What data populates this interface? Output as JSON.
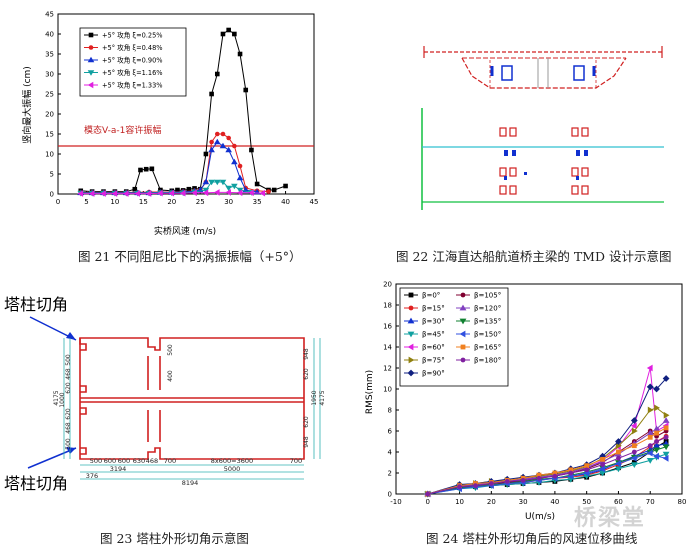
{
  "captions": {
    "fig21": "图 21 不同阻尼比下的涡振振幅（+5°）",
    "fig22": "图 22 江海直达船航道桥主梁的 TMD 设计示意图",
    "fig23": "图 23 塔柱外形切角示意图",
    "fig24": "图 24 塔柱外形切角后的风速位移曲线"
  },
  "fig21": {
    "xlabel": "实桥风速 (m/s)",
    "ylabel": "竖向最大振幅 (cm)",
    "threshold_label": "模态V-a-1容许振幅",
    "threshold_value": 12,
    "xticks": [
      "0",
      "5",
      "10",
      "15",
      "20",
      "25",
      "30",
      "35",
      "40",
      "45"
    ],
    "yticks": [
      "0",
      "5",
      "10",
      "15",
      "20",
      "25",
      "30",
      "35",
      "40",
      "45"
    ]
  },
  "fig22": {},
  "fig23": {
    "label_top": "塔柱切角",
    "label_bottom": "塔柱切角",
    "dims_bottom_row": [
      "500",
      "600",
      "600",
      "630",
      "468",
      "700",
      "8x600=3600",
      "700"
    ],
    "dim_3194": "3194",
    "dim_5000": "5000",
    "dim_376": "376",
    "dim_8194": "8194",
    "dims_left": [
      "500",
      "468",
      "620",
      "1000",
      "620",
      "468",
      "500",
      "4175"
    ],
    "dims_right": [
      "948",
      "620",
      "1950",
      "620",
      "948",
      "4175"
    ],
    "dims_mid": [
      "500",
      "400"
    ]
  },
  "fig24": {
    "xlabel": "U(m/s)",
    "ylabel": "RMS(mm)",
    "xticks": [
      "-10",
      "0",
      "10",
      "20",
      "30",
      "40",
      "50",
      "60",
      "70",
      "80"
    ],
    "yticks": [
      "0",
      "2",
      "4",
      "6",
      "8",
      "10",
      "12",
      "14",
      "16",
      "18",
      "20"
    ]
  },
  "watermark": "桥梁堂",
  "chart_data": [
    {
      "type": "line",
      "title": "",
      "xlabel": "实桥风速 (m/s)",
      "ylabel": "竖向最大振幅 (cm)",
      "xlim": [
        0,
        45
      ],
      "ylim": [
        0,
        45
      ],
      "annotations": [
        {
          "text": "模态V-a-1容许振幅",
          "y": 12
        }
      ],
      "legend_position": "top-left",
      "series": [
        {
          "name": "+5° 攻角 ξ=0.25%",
          "color": "#000000",
          "marker": "square",
          "x": [
            4,
            6,
            8,
            10,
            12,
            13.5,
            14.5,
            15.5,
            16.5,
            18,
            20,
            21,
            22,
            23,
            24,
            25,
            26,
            27,
            28,
            29,
            30,
            31,
            32,
            33,
            34,
            35,
            37,
            38,
            40
          ],
          "y": [
            0.8,
            0.6,
            0.6,
            0.6,
            0.6,
            1.2,
            6,
            6.2,
            6.3,
            1,
            0.8,
            1,
            0.9,
            1.2,
            1.4,
            1.2,
            10,
            25,
            30,
            40,
            41,
            40,
            35,
            26,
            11,
            2.5,
            1,
            1,
            2
          ]
        },
        {
          "name": "+5° 攻角 ξ=0.48%",
          "color": "#e02020",
          "marker": "circle",
          "x": [
            4,
            6,
            8,
            10,
            12,
            14,
            16,
            18,
            20,
            22,
            24,
            25,
            26,
            27,
            28,
            29,
            30,
            31,
            32,
            33,
            35,
            37
          ],
          "y": [
            0.4,
            0.4,
            0.4,
            0.4,
            0.4,
            0.4,
            0.5,
            0.5,
            0.5,
            0.6,
            0.8,
            1,
            3,
            13,
            15,
            15,
            14,
            12,
            7,
            1.5,
            0.8,
            0.6
          ]
        },
        {
          "name": "+5° 攻角 ξ=0.90%",
          "color": "#1030d0",
          "marker": "triangle-up",
          "x": [
            4,
            6,
            8,
            10,
            12,
            14,
            16,
            18,
            20,
            22,
            24,
            25,
            26,
            27,
            28,
            29,
            30,
            31,
            32,
            33,
            35
          ],
          "y": [
            0.3,
            0.3,
            0.3,
            0.3,
            0.3,
            0.3,
            0.3,
            0.4,
            0.4,
            0.5,
            0.7,
            1,
            3,
            11,
            13,
            12,
            11,
            8,
            4,
            1,
            0.5
          ]
        },
        {
          "name": "+5° 攻角 ξ=1.16%",
          "color": "#10a0a0",
          "marker": "triangle-down",
          "x": [
            4,
            6,
            8,
            10,
            12,
            14,
            16,
            18,
            20,
            22,
            24,
            26,
            27,
            28,
            29,
            30,
            31,
            32,
            34
          ],
          "y": [
            0.2,
            0.2,
            0.2,
            0.2,
            0.2,
            0.2,
            0.2,
            0.3,
            0.3,
            0.3,
            0.5,
            1,
            3,
            3,
            3,
            1.5,
            2,
            1,
            0.4
          ]
        },
        {
          "name": "+5° 攻角 ξ=1.33%",
          "color": "#e020e0",
          "marker": "triangle-left",
          "x": [
            4,
            6,
            8,
            10,
            12,
            14,
            16,
            18,
            20,
            22,
            24,
            26,
            28,
            30,
            32,
            34,
            36
          ],
          "y": [
            0.1,
            0.1,
            0.1,
            0.1,
            0.1,
            0.1,
            0.1,
            0.2,
            0.2,
            0.2,
            0.3,
            0.3,
            0.4,
            0.4,
            0.3,
            0.3,
            0.2
          ]
        }
      ]
    },
    {
      "type": "line",
      "title": "",
      "xlabel": "U(m/s)",
      "ylabel": "RMS(mm)",
      "xlim": [
        -10,
        80
      ],
      "ylim": [
        0,
        20
      ],
      "legend_position": "top-left",
      "series": [
        {
          "name": "β=0°",
          "color": "#000000",
          "marker": "square",
          "x": [
            0,
            10,
            15,
            20,
            25,
            30,
            35,
            40,
            45,
            50,
            55,
            60,
            65,
            70,
            72,
            75
          ],
          "y": [
            0,
            0.6,
            0.7,
            0.8,
            0.9,
            1,
            1.1,
            1.2,
            1.4,
            1.6,
            2,
            2.5,
            3,
            4,
            4.5,
            5
          ]
        },
        {
          "name": "β=15°",
          "color": "#e02020",
          "marker": "circle",
          "x": [
            0,
            10,
            15,
            20,
            25,
            30,
            35,
            40,
            45,
            50,
            55,
            60,
            65,
            70,
            72,
            75
          ],
          "y": [
            0,
            0.7,
            0.8,
            0.9,
            1,
            1.1,
            1.3,
            1.5,
            1.6,
            1.8,
            2.2,
            2.8,
            3.5,
            4.5,
            5,
            5.5
          ]
        },
        {
          "name": "β=30°",
          "color": "#1030d0",
          "marker": "triangle-up",
          "x": [
            0,
            10,
            15,
            20,
            25,
            30,
            35,
            40,
            45,
            50,
            55,
            60,
            65,
            70,
            72,
            75
          ],
          "y": [
            0,
            0.8,
            0.9,
            1,
            1.1,
            1.2,
            1.4,
            1.5,
            1.7,
            1.9,
            2.3,
            3,
            3.6,
            4.2,
            4.6,
            4.8
          ]
        },
        {
          "name": "β=45°",
          "color": "#10a0a0",
          "marker": "triangle-down",
          "x": [
            0,
            10,
            15,
            20,
            25,
            30,
            35,
            40,
            45,
            50,
            55,
            60,
            65,
            70,
            72,
            75
          ],
          "y": [
            0,
            0.5,
            0.6,
            0.8,
            0.9,
            1,
            1.1,
            1.3,
            1.4,
            1.7,
            2,
            2.4,
            2.8,
            3.2,
            3.5,
            3.8
          ]
        },
        {
          "name": "β=60°",
          "color": "#e020e0",
          "marker": "triangle-left",
          "x": [
            0,
            10,
            15,
            20,
            25,
            30,
            35,
            40,
            45,
            50,
            55,
            60,
            65,
            70,
            72,
            75
          ],
          "y": [
            0,
            0.7,
            0.9,
            1,
            1.2,
            1.4,
            1.6,
            1.8,
            2.1,
            2.5,
            3.2,
            4.5,
            6.5,
            12,
            6,
            6.5
          ]
        },
        {
          "name": "β=75°",
          "color": "#908010",
          "marker": "triangle-right",
          "x": [
            0,
            10,
            15,
            20,
            25,
            30,
            35,
            40,
            45,
            50,
            55,
            60,
            65,
            70,
            72,
            75
          ],
          "y": [
            0,
            0.8,
            1,
            1.2,
            1.3,
            1.5,
            1.7,
            1.9,
            2.2,
            2.6,
            3.4,
            4.6,
            6,
            8,
            8.2,
            7.5
          ]
        },
        {
          "name": "β=90°",
          "color": "#102080",
          "marker": "diamond",
          "x": [
            0,
            10,
            15,
            20,
            25,
            30,
            35,
            40,
            45,
            50,
            55,
            60,
            65,
            70,
            72,
            75
          ],
          "y": [
            0,
            0.9,
            1,
            1.2,
            1.4,
            1.6,
            1.8,
            2,
            2.4,
            2.8,
            3.6,
            5,
            7,
            10.2,
            10,
            11
          ]
        },
        {
          "name": "β=105°",
          "color": "#800030",
          "marker": "circle",
          "x": [
            0,
            10,
            15,
            20,
            25,
            30,
            35,
            40,
            45,
            50,
            55,
            60,
            65,
            70,
            72,
            75
          ],
          "y": [
            0,
            0.6,
            0.8,
            1,
            1.1,
            1.3,
            1.5,
            1.7,
            2,
            2.4,
            3,
            4,
            5,
            6,
            5.5,
            6
          ]
        },
        {
          "name": "β=120°",
          "color": "#8040c0",
          "marker": "triangle-up",
          "x": [
            0,
            10,
            15,
            20,
            25,
            30,
            35,
            40,
            45,
            50,
            55,
            60,
            65,
            70,
            72,
            75
          ],
          "y": [
            0,
            0.7,
            0.9,
            1,
            1.2,
            1.4,
            1.6,
            1.8,
            2.1,
            2.5,
            3.1,
            3.8,
            4.8,
            5.8,
            6.2,
            7
          ]
        },
        {
          "name": "β=135°",
          "color": "#108030",
          "marker": "triangle-down",
          "x": [
            0,
            10,
            15,
            20,
            25,
            30,
            35,
            40,
            45,
            50,
            55,
            60,
            65,
            70,
            72,
            75
          ],
          "y": [
            0,
            0.6,
            0.7,
            0.9,
            1,
            1.2,
            1.4,
            1.5,
            1.8,
            2.1,
            2.5,
            3,
            3.5,
            4,
            4.2,
            4.5
          ]
        },
        {
          "name": "β=150°",
          "color": "#3050e0",
          "marker": "triangle-left",
          "x": [
            0,
            10,
            15,
            20,
            25,
            30,
            35,
            40,
            45,
            50,
            55,
            60,
            65,
            70,
            72,
            75
          ],
          "y": [
            0,
            0.5,
            0.7,
            0.8,
            1,
            1.1,
            1.3,
            1.5,
            1.7,
            2,
            2.4,
            2.9,
            3.4,
            3.9,
            3.6,
            3.4
          ]
        },
        {
          "name": "β=165°",
          "color": "#f08020",
          "marker": "square",
          "x": [
            0,
            10,
            15,
            20,
            25,
            30,
            35,
            40,
            45,
            50,
            55,
            60,
            65,
            70,
            72,
            75
          ],
          "y": [
            0,
            0.8,
            1,
            1.1,
            1.3,
            1.5,
            1.8,
            2,
            2.3,
            2.7,
            3.3,
            4,
            4.6,
            5.4,
            5.8,
            6.3
          ]
        },
        {
          "name": "β=180°",
          "color": "#8020a0",
          "marker": "circle",
          "x": [
            0,
            10,
            15,
            20,
            25,
            30,
            35,
            40,
            45,
            50,
            55,
            60,
            65,
            70,
            72,
            75
          ],
          "y": [
            0,
            0.7,
            0.8,
            1,
            1.2,
            1.3,
            1.5,
            1.7,
            2,
            2.3,
            2.8,
            3.4,
            4,
            4.6,
            5,
            5.4
          ]
        }
      ]
    }
  ]
}
